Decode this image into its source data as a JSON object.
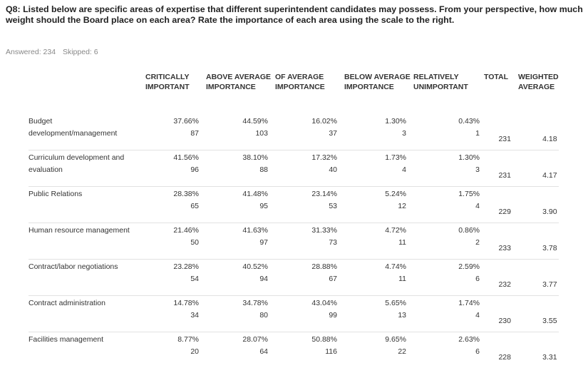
{
  "question": {
    "title": "Q8: Listed below are specific areas of expertise that different superintendent candidates may possess. From your perspective, how much weight should the Board place on each area? Rate the importance of each area using the scale to the right.",
    "answered": "Answered: 234",
    "skipped": "Skipped: 6"
  },
  "table": {
    "headers": [
      "",
      "CRITICALLY IMPORTANT",
      "ABOVE AVERAGE IMPORTANCE",
      "OF AVERAGE IMPORTANCE",
      "BELOW AVERAGE IMPORTANCE",
      "RELATIVELY UNIMPORTANT",
      "TOTAL",
      "WEIGHTED AVERAGE"
    ],
    "rows": [
      {
        "label": "Budget development/management",
        "cells": [
          {
            "pct": "37.66%",
            "count": "87"
          },
          {
            "pct": "44.59%",
            "count": "103"
          },
          {
            "pct": "16.02%",
            "count": "37"
          },
          {
            "pct": "1.30%",
            "count": "3"
          },
          {
            "pct": "0.43%",
            "count": "1"
          }
        ],
        "total": "231",
        "weighted": "4.18"
      },
      {
        "label": "Curriculum development and evaluation",
        "cells": [
          {
            "pct": "41.56%",
            "count": "96"
          },
          {
            "pct": "38.10%",
            "count": "88"
          },
          {
            "pct": "17.32%",
            "count": "40"
          },
          {
            "pct": "1.73%",
            "count": "4"
          },
          {
            "pct": "1.30%",
            "count": "3"
          }
        ],
        "total": "231",
        "weighted": "4.17"
      },
      {
        "label": "Public Relations",
        "cells": [
          {
            "pct": "28.38%",
            "count": "65"
          },
          {
            "pct": "41.48%",
            "count": "95"
          },
          {
            "pct": "23.14%",
            "count": "53"
          },
          {
            "pct": "5.24%",
            "count": "12"
          },
          {
            "pct": "1.75%",
            "count": "4"
          }
        ],
        "total": "229",
        "weighted": "3.90"
      },
      {
        "label": "Human resource management",
        "cells": [
          {
            "pct": "21.46%",
            "count": "50"
          },
          {
            "pct": "41.63%",
            "count": "97"
          },
          {
            "pct": "31.33%",
            "count": "73"
          },
          {
            "pct": "4.72%",
            "count": "11"
          },
          {
            "pct": "0.86%",
            "count": "2"
          }
        ],
        "total": "233",
        "weighted": "3.78"
      },
      {
        "label": "Contract/labor negotiations",
        "cells": [
          {
            "pct": "23.28%",
            "count": "54"
          },
          {
            "pct": "40.52%",
            "count": "94"
          },
          {
            "pct": "28.88%",
            "count": "67"
          },
          {
            "pct": "4.74%",
            "count": "11"
          },
          {
            "pct": "2.59%",
            "count": "6"
          }
        ],
        "total": "232",
        "weighted": "3.77"
      },
      {
        "label": "Contract administration",
        "cells": [
          {
            "pct": "14.78%",
            "count": "34"
          },
          {
            "pct": "34.78%",
            "count": "80"
          },
          {
            "pct": "43.04%",
            "count": "99"
          },
          {
            "pct": "5.65%",
            "count": "13"
          },
          {
            "pct": "1.74%",
            "count": "4"
          }
        ],
        "total": "230",
        "weighted": "3.55"
      },
      {
        "label": "Facilities management",
        "cells": [
          {
            "pct": "8.77%",
            "count": "20"
          },
          {
            "pct": "28.07%",
            "count": "64"
          },
          {
            "pct": "50.88%",
            "count": "116"
          },
          {
            "pct": "9.65%",
            "count": "22"
          },
          {
            "pct": "2.63%",
            "count": "6"
          }
        ],
        "total": "228",
        "weighted": "3.31"
      }
    ]
  }
}
